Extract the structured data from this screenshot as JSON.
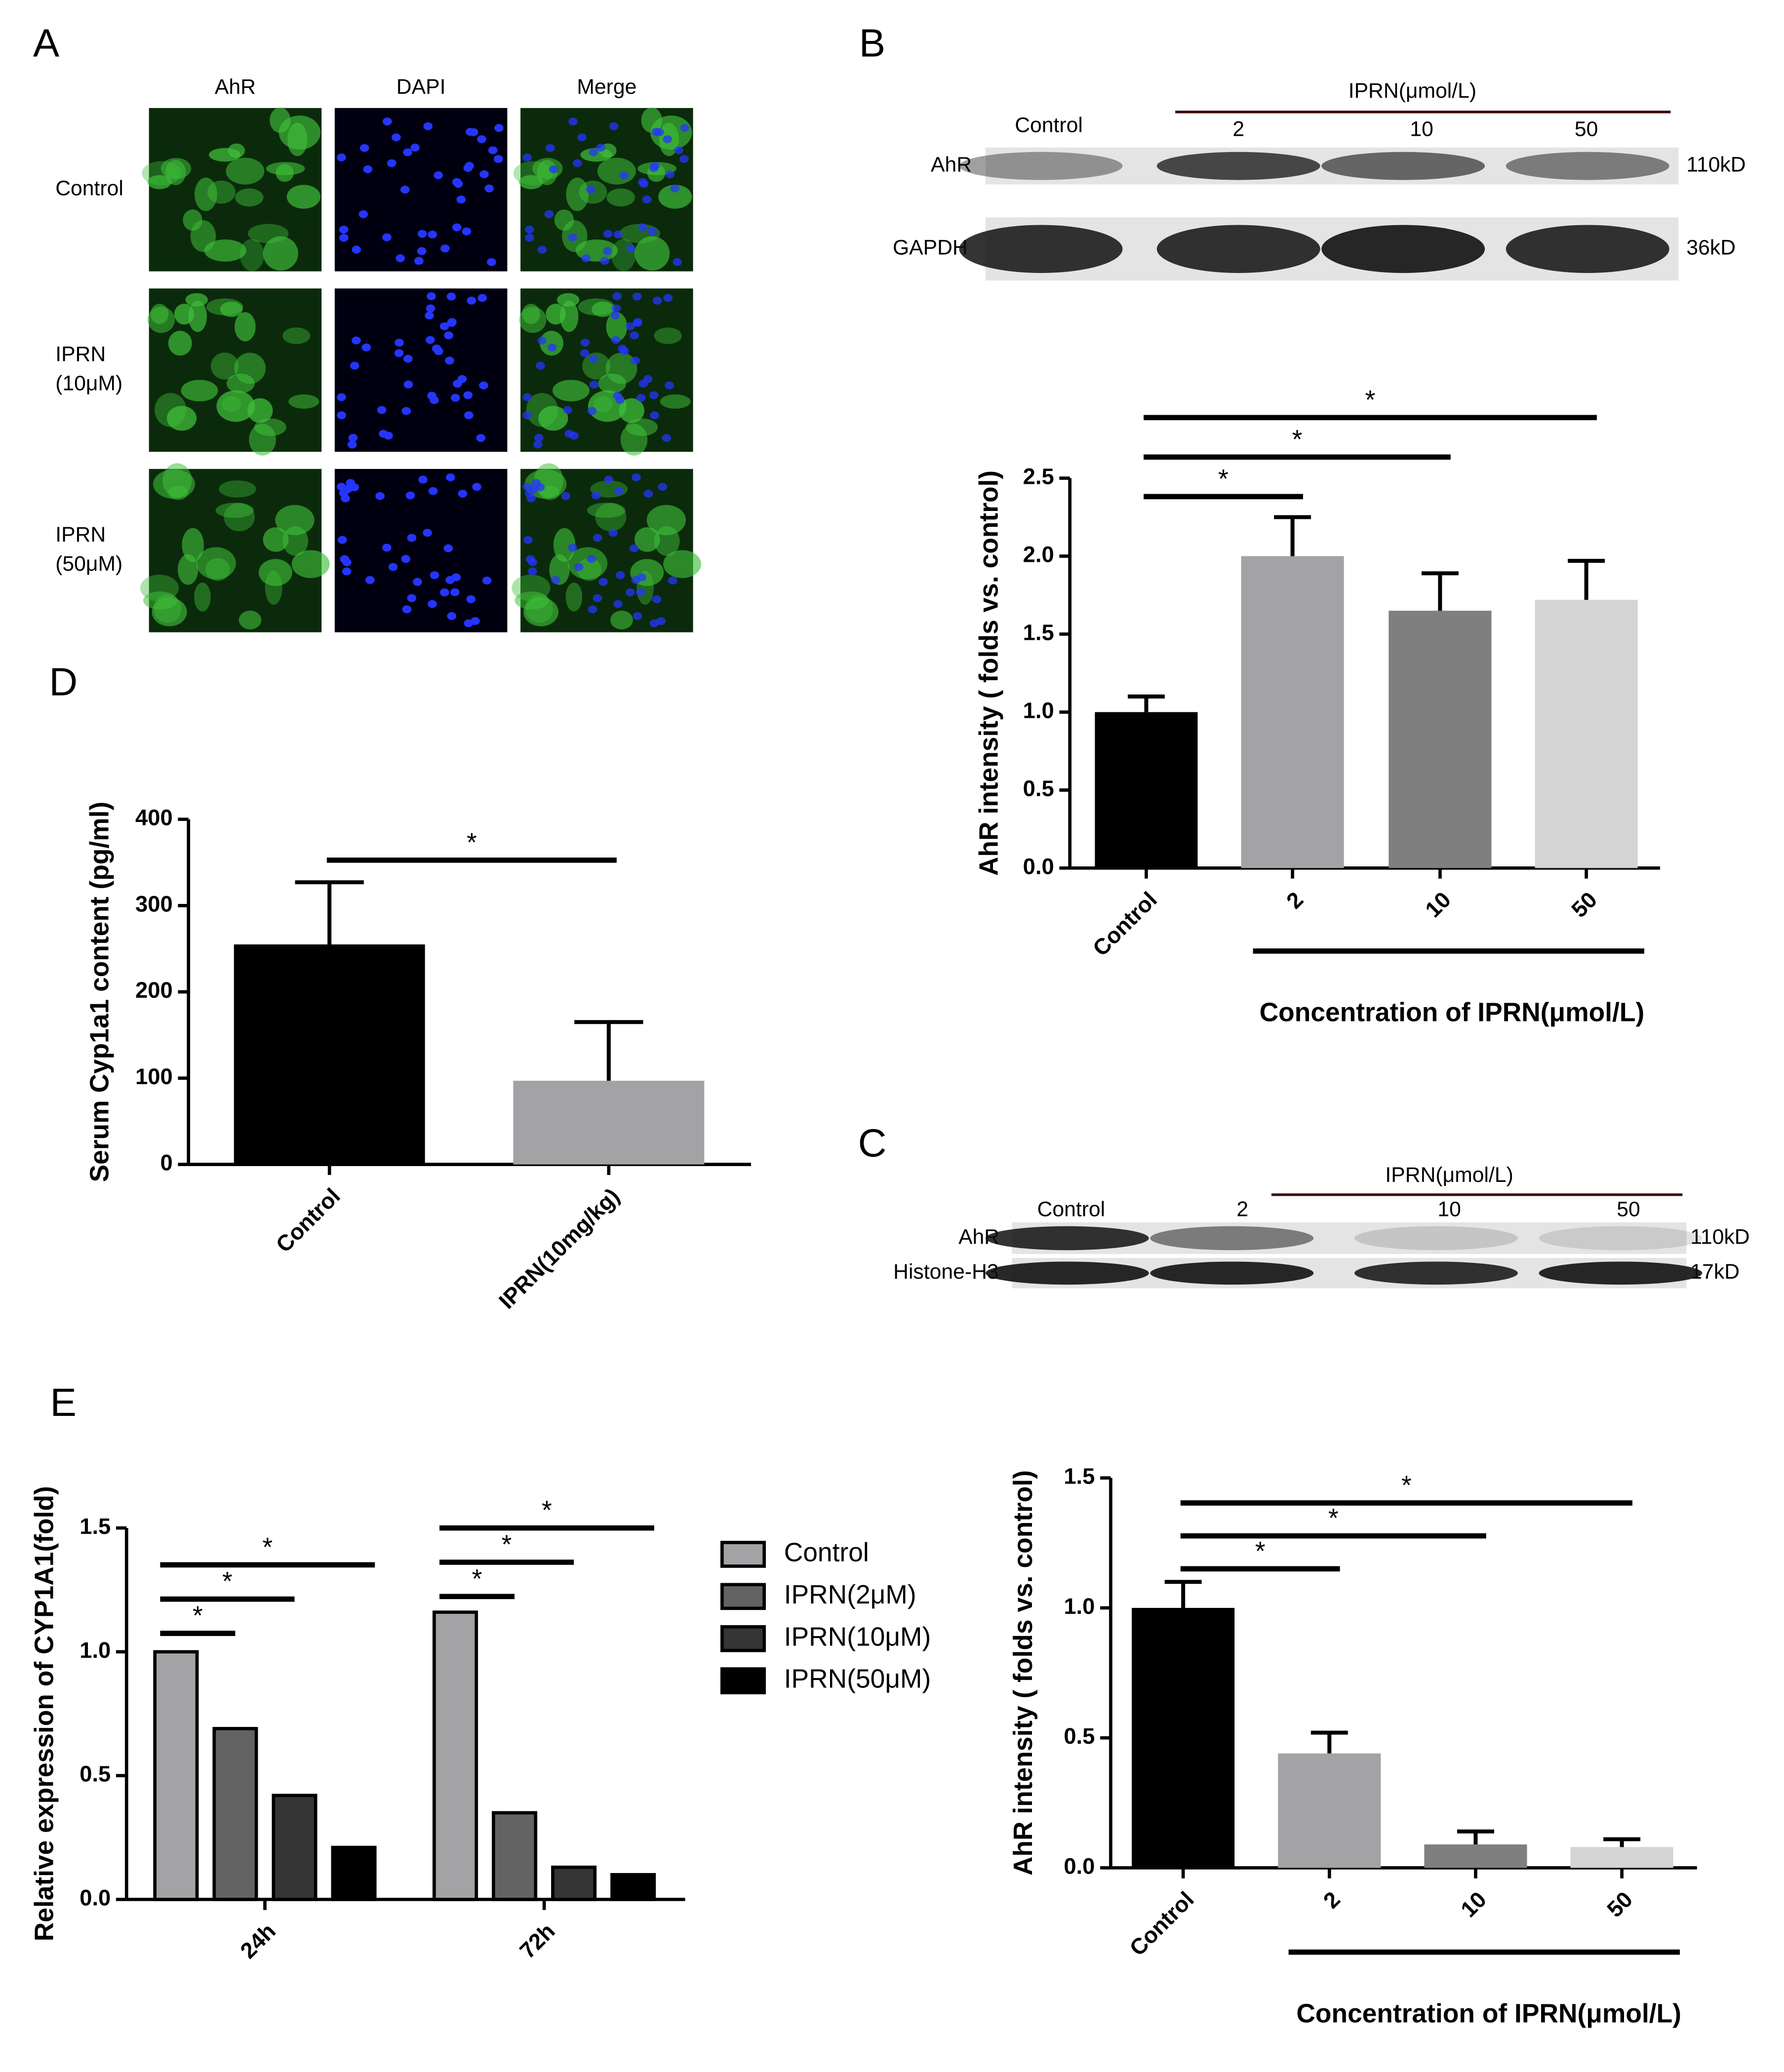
{
  "panels": [
    "A",
    "B",
    "C",
    "D",
    "E"
  ],
  "micrographs": {
    "columns": [
      "AhR",
      "DAPI",
      "Merge"
    ],
    "rows": [
      [
        "Control"
      ],
      [
        "IPRN",
        "(10μM)"
      ],
      [
        "IPRN",
        "(50μM)"
      ]
    ]
  },
  "blots": [
    {
      "group_label": "IPRN(μmol/L)",
      "lanes": [
        "Control",
        "2",
        "10",
        "50"
      ],
      "bands": [
        {
          "name": "AhR",
          "size": "110kD"
        },
        {
          "name": "GAPDH",
          "size": "36kD"
        }
      ]
    },
    {
      "group_label": "IPRN(μmol/L)",
      "lanes": [
        "Control",
        "2",
        "10",
        "50"
      ],
      "bands": [
        {
          "name": "AhR",
          "size": "110kD"
        },
        {
          "name": "Histone-H3",
          "size": "17kD"
        }
      ]
    }
  ],
  "chart_data": [
    {
      "type": "bar",
      "categories": [
        "Control",
        "2",
        "10",
        "50"
      ],
      "values": [
        1.0,
        2.0,
        1.65,
        1.72
      ],
      "errors": [
        0.1,
        0.25,
        0.24,
        0.25
      ],
      "colors": [
        "#000000",
        "#a3a3a6",
        "#7f7f7f",
        "#d4d4d4"
      ],
      "ylabel": "AhR intensity ( folds vs. control)",
      "xlabel": "Concentration of IPRN(μmol/L)",
      "ylim": [
        0,
        2.5
      ],
      "yticks": [
        {
          "value": 0,
          "label": "0.0"
        },
        0.5,
        {
          "value": 1,
          "label": "1.0"
        },
        1.5,
        {
          "value": 2,
          "label": "2.0"
        },
        2.5
      ],
      "significance": [
        {
          "label": "*",
          "pair": [
            0,
            1
          ]
        },
        {
          "label": "*",
          "pair": [
            0,
            2
          ]
        },
        {
          "label": "*",
          "pair": [
            0,
            3
          ]
        }
      ]
    },
    {
      "type": "bar",
      "categories": [
        "Control",
        "IPRN(10mg/kg)"
      ],
      "values": [
        255,
        97
      ],
      "errors": [
        72,
        68
      ],
      "colors": [
        "#000000",
        "#a3a3a6"
      ],
      "ylabel": "Serum Cyp1a1 content (pg/ml)",
      "ylim": [
        0,
        400
      ],
      "yticks": [
        0,
        100,
        200,
        300,
        400
      ],
      "significance": [
        {
          "label": "*",
          "pair": [
            0,
            1
          ]
        }
      ]
    },
    {
      "type": "bar",
      "categories": [
        "24h",
        "72h"
      ],
      "series": [
        {
          "name": "Control",
          "color": "#a3a3a6",
          "values": [
            1.0,
            1.16
          ]
        },
        {
          "name": "IPRN(2μM)",
          "color": "#636363",
          "values": [
            0.69,
            0.35
          ]
        },
        {
          "name": "IPRN(10μM)",
          "color": "#353535",
          "values": [
            0.42,
            0.13
          ]
        },
        {
          "name": "IPRN(50μM)",
          "color": "#000000",
          "values": [
            0.21,
            0.1
          ]
        }
      ],
      "ylabel": "Relative expression of CYP1A1(fold)",
      "ylim": [
        0,
        1.5
      ],
      "yticks": [
        {
          "value": 0,
          "label": "0.0"
        },
        0.5,
        {
          "value": 1,
          "label": "1.0"
        },
        1.5
      ],
      "significance": [
        {
          "label": "*",
          "category": 0,
          "pair": [
            0,
            1
          ]
        },
        {
          "label": "*",
          "category": 0,
          "pair": [
            0,
            2
          ]
        },
        {
          "label": "*",
          "category": 0,
          "pair": [
            0,
            3
          ]
        },
        {
          "label": "*",
          "category": 1,
          "pair": [
            0,
            1
          ]
        },
        {
          "label": "*",
          "category": 1,
          "pair": [
            0,
            2
          ]
        },
        {
          "label": "*",
          "category": 1,
          "pair": [
            0,
            3
          ]
        }
      ]
    },
    {
      "type": "bar",
      "categories": [
        "Control",
        "2",
        "10",
        "50"
      ],
      "values": [
        1.0,
        0.44,
        0.09,
        0.08
      ],
      "errors": [
        0.1,
        0.08,
        0.05,
        0.03
      ],
      "colors": [
        "#000000",
        "#a3a3a6",
        "#7f7f7f",
        "#d4d4d4"
      ],
      "ylabel": "AhR intensity ( folds vs. control)",
      "xlabel": "Concentration of IPRN(μmol/L)",
      "ylim": [
        0,
        1.5
      ],
      "yticks": [
        {
          "value": 0,
          "label": "0.0"
        },
        0.5,
        {
          "value": 1,
          "label": "1.0"
        },
        1.5
      ],
      "significance": [
        {
          "label": "*",
          "pair": [
            0,
            1
          ]
        },
        {
          "label": "*",
          "pair": [
            0,
            2
          ]
        },
        {
          "label": "*",
          "pair": [
            0,
            3
          ]
        }
      ]
    }
  ]
}
